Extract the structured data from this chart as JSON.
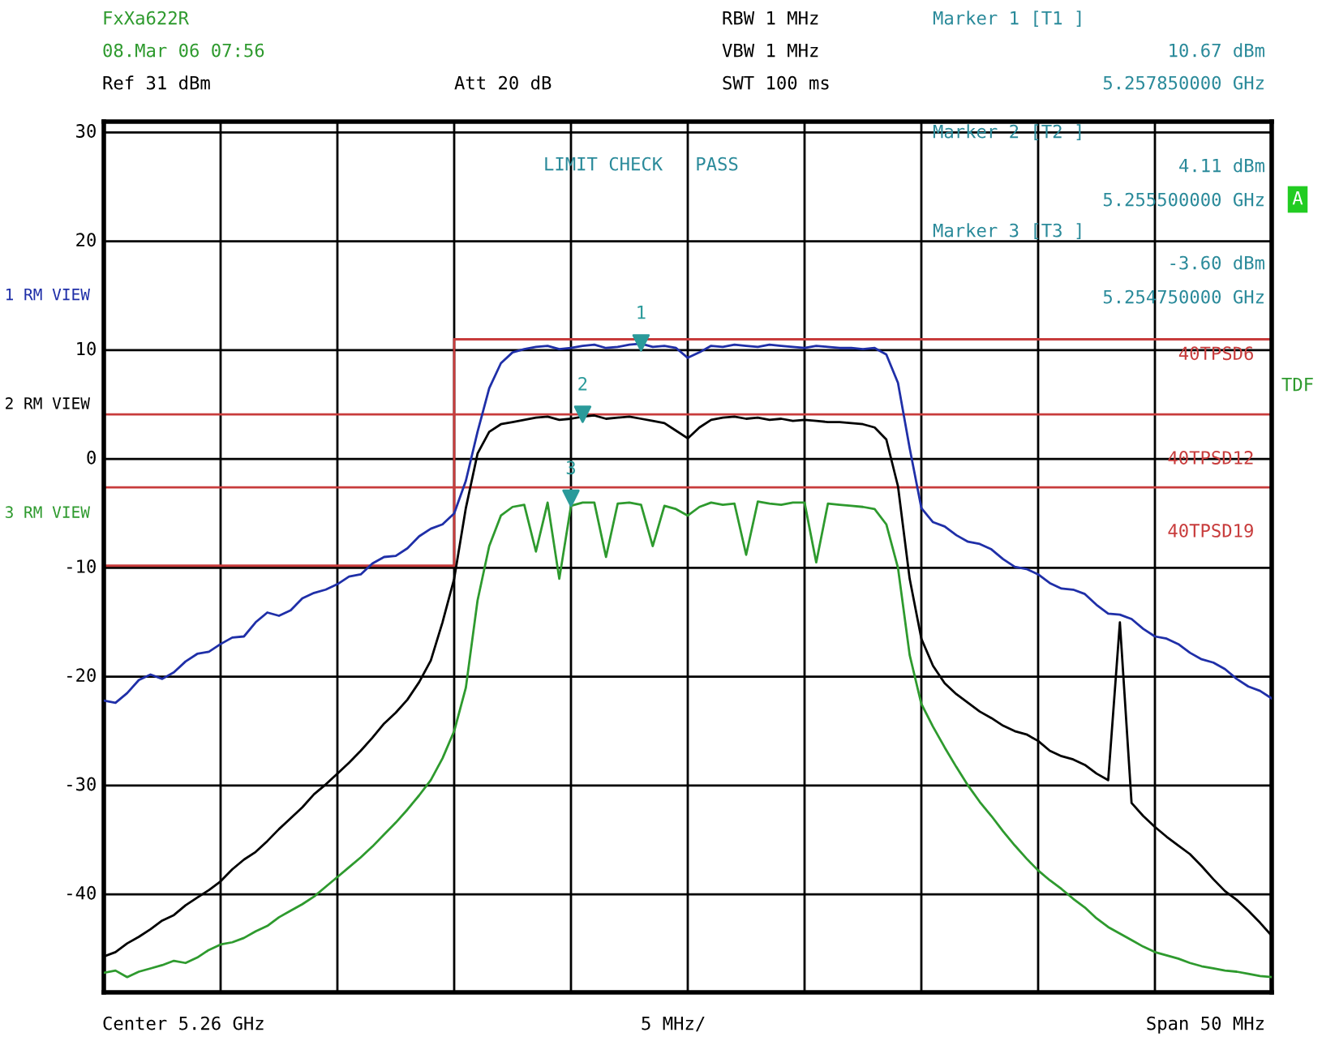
{
  "chart_data": {
    "type": "line",
    "annotations": [
      "FxXa622R",
      "08.Mar 06 07:56",
      "Ref 31 dBm",
      "Att 20 dB",
      "RBW 1 MHz",
      "VBW 1 MHz",
      "SWT 100 ms",
      "Marker 1 [T1 ]",
      "10.67 dBm",
      "5.257850000 GHz",
      "Marker 2 [T2 ]",
      "4.11 dBm",
      "5.255500000 GHz",
      "Marker 3 [T3 ]",
      "-3.60 dBm",
      "5.254750000 GHz",
      "LIMIT CHECK   PASS",
      "A",
      "TDF",
      "Center 5.26 GHz",
      "5 MHz/",
      "Span 50 MHz",
      "1",
      "2",
      "3"
    ],
    "categories": [
      null,
      null,
      null,
      null,
      null,
      null,
      null,
      null,
      null,
      null,
      null,
      null,
      null,
      null,
      null,
      null,
      null,
      null,
      null,
      null,
      null,
      null,
      null,
      null,
      null,
      null,
      null,
      null,
      null,
      null,
      null,
      null,
      null,
      null,
      null,
      null,
      null,
      null,
      null,
      null,
      null,
      null,
      null,
      null,
      null,
      null,
      null,
      null,
      null,
      null,
      null,
      null,
      null,
      null,
      null,
      null,
      null,
      null,
      null,
      null,
      null,
      null,
      null,
      null,
      null,
      null,
      null,
      null,
      null,
      null,
      null,
      null,
      null,
      null,
      null,
      null,
      null,
      null,
      null,
      null,
      null,
      null,
      null,
      null,
      null,
      null,
      null,
      null,
      null,
      null,
      null,
      null,
      null,
      null,
      null,
      null,
      null,
      null,
      null,
      null,
      null
    ],
    "ylim": [
      -49,
      31
    ],
    "yticks": [
      -40,
      -30,
      -20,
      -10,
      0,
      10,
      20,
      30
    ],
    "grid": true,
    "line_style": "solid",
    "ref_lines": [
      {
        "axis": "y",
        "value": 4.1,
        "label": "40TPSD12",
        "color": "#c83c3c"
      },
      {
        "axis": "y",
        "value": -2.6,
        "label": "40TPSD19",
        "color": "#c83c3c"
      }
    ],
    "series": [
      {
        "name": "1 RM VIEW",
        "color": "#1f2fa8",
        "values": [
          -22.2,
          -22.4,
          -21.5,
          -20.3,
          -19.8,
          -20.2,
          -19.6,
          -18.6,
          -17.9,
          -17.7,
          -17.0,
          -16.4,
          -16.3,
          -15.0,
          -14.1,
          -14.4,
          -13.9,
          -12.8,
          -12.3,
          -12.0,
          -11.5,
          -10.8,
          -10.6,
          -9.6,
          -9.0,
          -8.9,
          -8.2,
          -7.1,
          -6.4,
          -6.0,
          -5.0,
          -2.0,
          2.5,
          6.5,
          8.8,
          9.8,
          10.1,
          10.3,
          10.4,
          10.1,
          10.2,
          10.4,
          10.5,
          10.2,
          10.3,
          10.5,
          10.6,
          10.3,
          10.4,
          10.2,
          9.3,
          9.8,
          10.4,
          10.3,
          10.5,
          10.4,
          10.3,
          10.5,
          10.4,
          10.3,
          10.2,
          10.4,
          10.3,
          10.2,
          10.2,
          10.1,
          10.2,
          9.6,
          7.0,
          1.0,
          -4.5,
          -5.8,
          -6.2,
          -7.0,
          -7.6,
          -7.8,
          -8.3,
          -9.2,
          -9.9,
          -10.1,
          -10.6,
          -11.4,
          -11.9,
          -12.0,
          -12.4,
          -13.4,
          -14.2,
          -14.3,
          -14.7,
          -15.6,
          -16.3,
          -16.5,
          -17.0,
          -17.8,
          -18.4,
          -18.7,
          -19.3,
          -20.2,
          -20.9,
          -21.3,
          -22.0
        ]
      },
      {
        "name": "2 RM VIEW",
        "color": "#000000",
        "values": [
          -45.7,
          -45.3,
          -44.5,
          -43.9,
          -43.2,
          -42.4,
          -41.9,
          -41.0,
          -40.3,
          -39.6,
          -38.8,
          -37.7,
          -36.8,
          -36.1,
          -35.1,
          -34.0,
          -33.0,
          -32.0,
          -30.8,
          -29.9,
          -28.9,
          -27.9,
          -26.8,
          -25.6,
          -24.3,
          -23.3,
          -22.1,
          -20.5,
          -18.5,
          -15.0,
          -11.0,
          -4.5,
          0.5,
          2.5,
          3.2,
          3.4,
          3.6,
          3.8,
          3.9,
          3.6,
          3.7,
          3.9,
          4.0,
          3.7,
          3.8,
          3.9,
          3.7,
          3.5,
          3.3,
          2.6,
          1.9,
          2.9,
          3.6,
          3.8,
          3.9,
          3.7,
          3.8,
          3.6,
          3.7,
          3.5,
          3.6,
          3.5,
          3.4,
          3.4,
          3.3,
          3.2,
          2.9,
          1.8,
          -2.5,
          -11.0,
          -16.5,
          -19.0,
          -20.6,
          -21.6,
          -22.4,
          -23.2,
          -23.8,
          -24.5,
          -25.0,
          -25.3,
          -25.9,
          -26.8,
          -27.3,
          -27.6,
          -28.1,
          -28.9,
          -29.5,
          -15.0,
          -31.6,
          -32.8,
          -33.8,
          -34.7,
          -35.5,
          -36.3,
          -37.4,
          -38.6,
          -39.7,
          -40.5,
          -41.5,
          -42.6,
          -43.8
        ]
      },
      {
        "name": "3 RM VIEW",
        "color": "#2e9a2e",
        "values": [
          -47.2,
          -47.0,
          -47.6,
          -47.1,
          -46.8,
          -46.5,
          -46.1,
          -46.3,
          -45.8,
          -45.1,
          -44.6,
          -44.4,
          -44.0,
          -43.4,
          -42.9,
          -42.1,
          -41.5,
          -40.9,
          -40.2,
          -39.3,
          -38.4,
          -37.5,
          -36.6,
          -35.6,
          -34.5,
          -33.4,
          -32.2,
          -30.9,
          -29.5,
          -27.5,
          -25.0,
          -21.0,
          -13.0,
          -8.0,
          -5.2,
          -4.4,
          -4.2,
          -8.5,
          -4.0,
          -11.0,
          -4.3,
          -4.0,
          -4.0,
          -9.0,
          -4.1,
          -4.0,
          -4.2,
          -8.0,
          -4.3,
          -4.6,
          -5.2,
          -4.4,
          -4.0,
          -4.2,
          -4.1,
          -8.8,
          -3.9,
          -4.1,
          -4.2,
          -4.0,
          -4.0,
          -9.5,
          -4.1,
          -4.2,
          -4.3,
          -4.4,
          -4.6,
          -6.0,
          -10.0,
          -18.0,
          -22.5,
          -24.6,
          -26.5,
          -28.3,
          -30.0,
          -31.5,
          -32.8,
          -34.2,
          -35.5,
          -36.7,
          -37.8,
          -38.7,
          -39.5,
          -40.4,
          -41.2,
          -42.2,
          -43.0,
          -43.6,
          -44.2,
          -44.8,
          -45.3,
          -45.6,
          -45.9,
          -46.3,
          -46.6,
          -46.8,
          -47.0,
          -47.1,
          -47.3,
          -47.5,
          -47.6
        ]
      },
      {
        "name": "40TPSD6",
        "type": "step",
        "color": "#c83c3c",
        "values": [
          -9.8,
          -9.8,
          -9.8,
          -9.8,
          -9.8,
          -9.8,
          -9.8,
          -9.8,
          -9.8,
          -9.8,
          -9.8,
          -9.8,
          -9.8,
          -9.8,
          -9.8,
          -9.8,
          -9.8,
          -9.8,
          -9.8,
          -9.8,
          -9.8,
          -9.8,
          -9.8,
          -9.8,
          -9.8,
          -9.8,
          -9.8,
          -9.8,
          -9.8,
          -9.8,
          11.0,
          11.0,
          11.0,
          11.0,
          11.0,
          11.0,
          11.0,
          11.0,
          11.0,
          11.0,
          11.0,
          11.0,
          11.0,
          11.0,
          11.0,
          11.0,
          11.0,
          11.0,
          11.0,
          11.0,
          11.0,
          11.0,
          11.0,
          11.0,
          11.0,
          11.0,
          11.0,
          11.0,
          11.0,
          11.0,
          11.0,
          11.0,
          11.0,
          11.0,
          11.0,
          11.0,
          11.0,
          11.0,
          11.0,
          11.0,
          11.0,
          11.0,
          11.0,
          11.0,
          11.0,
          11.0,
          11.0,
          11.0,
          11.0,
          11.0,
          11.0,
          11.0,
          11.0,
          11.0,
          11.0,
          11.0,
          11.0,
          11.0,
          11.0,
          11.0,
          11.0,
          11.0,
          11.0,
          11.0,
          11.0,
          11.0,
          11.0,
          11.0,
          11.0,
          11.0,
          11.0
        ]
      },
      {
        "type": "scatter",
        "marker": "triangle",
        "color": "#2a9a9a",
        "values": [
          null,
          null,
          null,
          null,
          null,
          null,
          null,
          null,
          null,
          null,
          null,
          null,
          null,
          null,
          null,
          null,
          null,
          null,
          null,
          null,
          null,
          null,
          null,
          null,
          null,
          null,
          null,
          null,
          null,
          null,
          null,
          null,
          null,
          null,
          null,
          null,
          null,
          null,
          null,
          null,
          -3.6,
          4.11,
          null,
          null,
          null,
          null,
          10.67,
          null,
          null,
          null,
          null,
          null,
          null,
          null,
          null,
          null,
          null,
          null,
          null,
          null,
          null,
          null,
          null,
          null,
          null,
          null,
          null,
          null,
          null,
          null,
          null,
          null,
          null,
          null,
          null,
          null,
          null,
          null,
          null,
          null,
          null,
          null,
          null,
          null,
          null,
          null,
          null,
          null,
          null,
          null,
          null,
          null,
          null,
          null,
          null,
          null,
          null,
          null,
          null,
          null,
          null
        ]
      }
    ]
  }
}
